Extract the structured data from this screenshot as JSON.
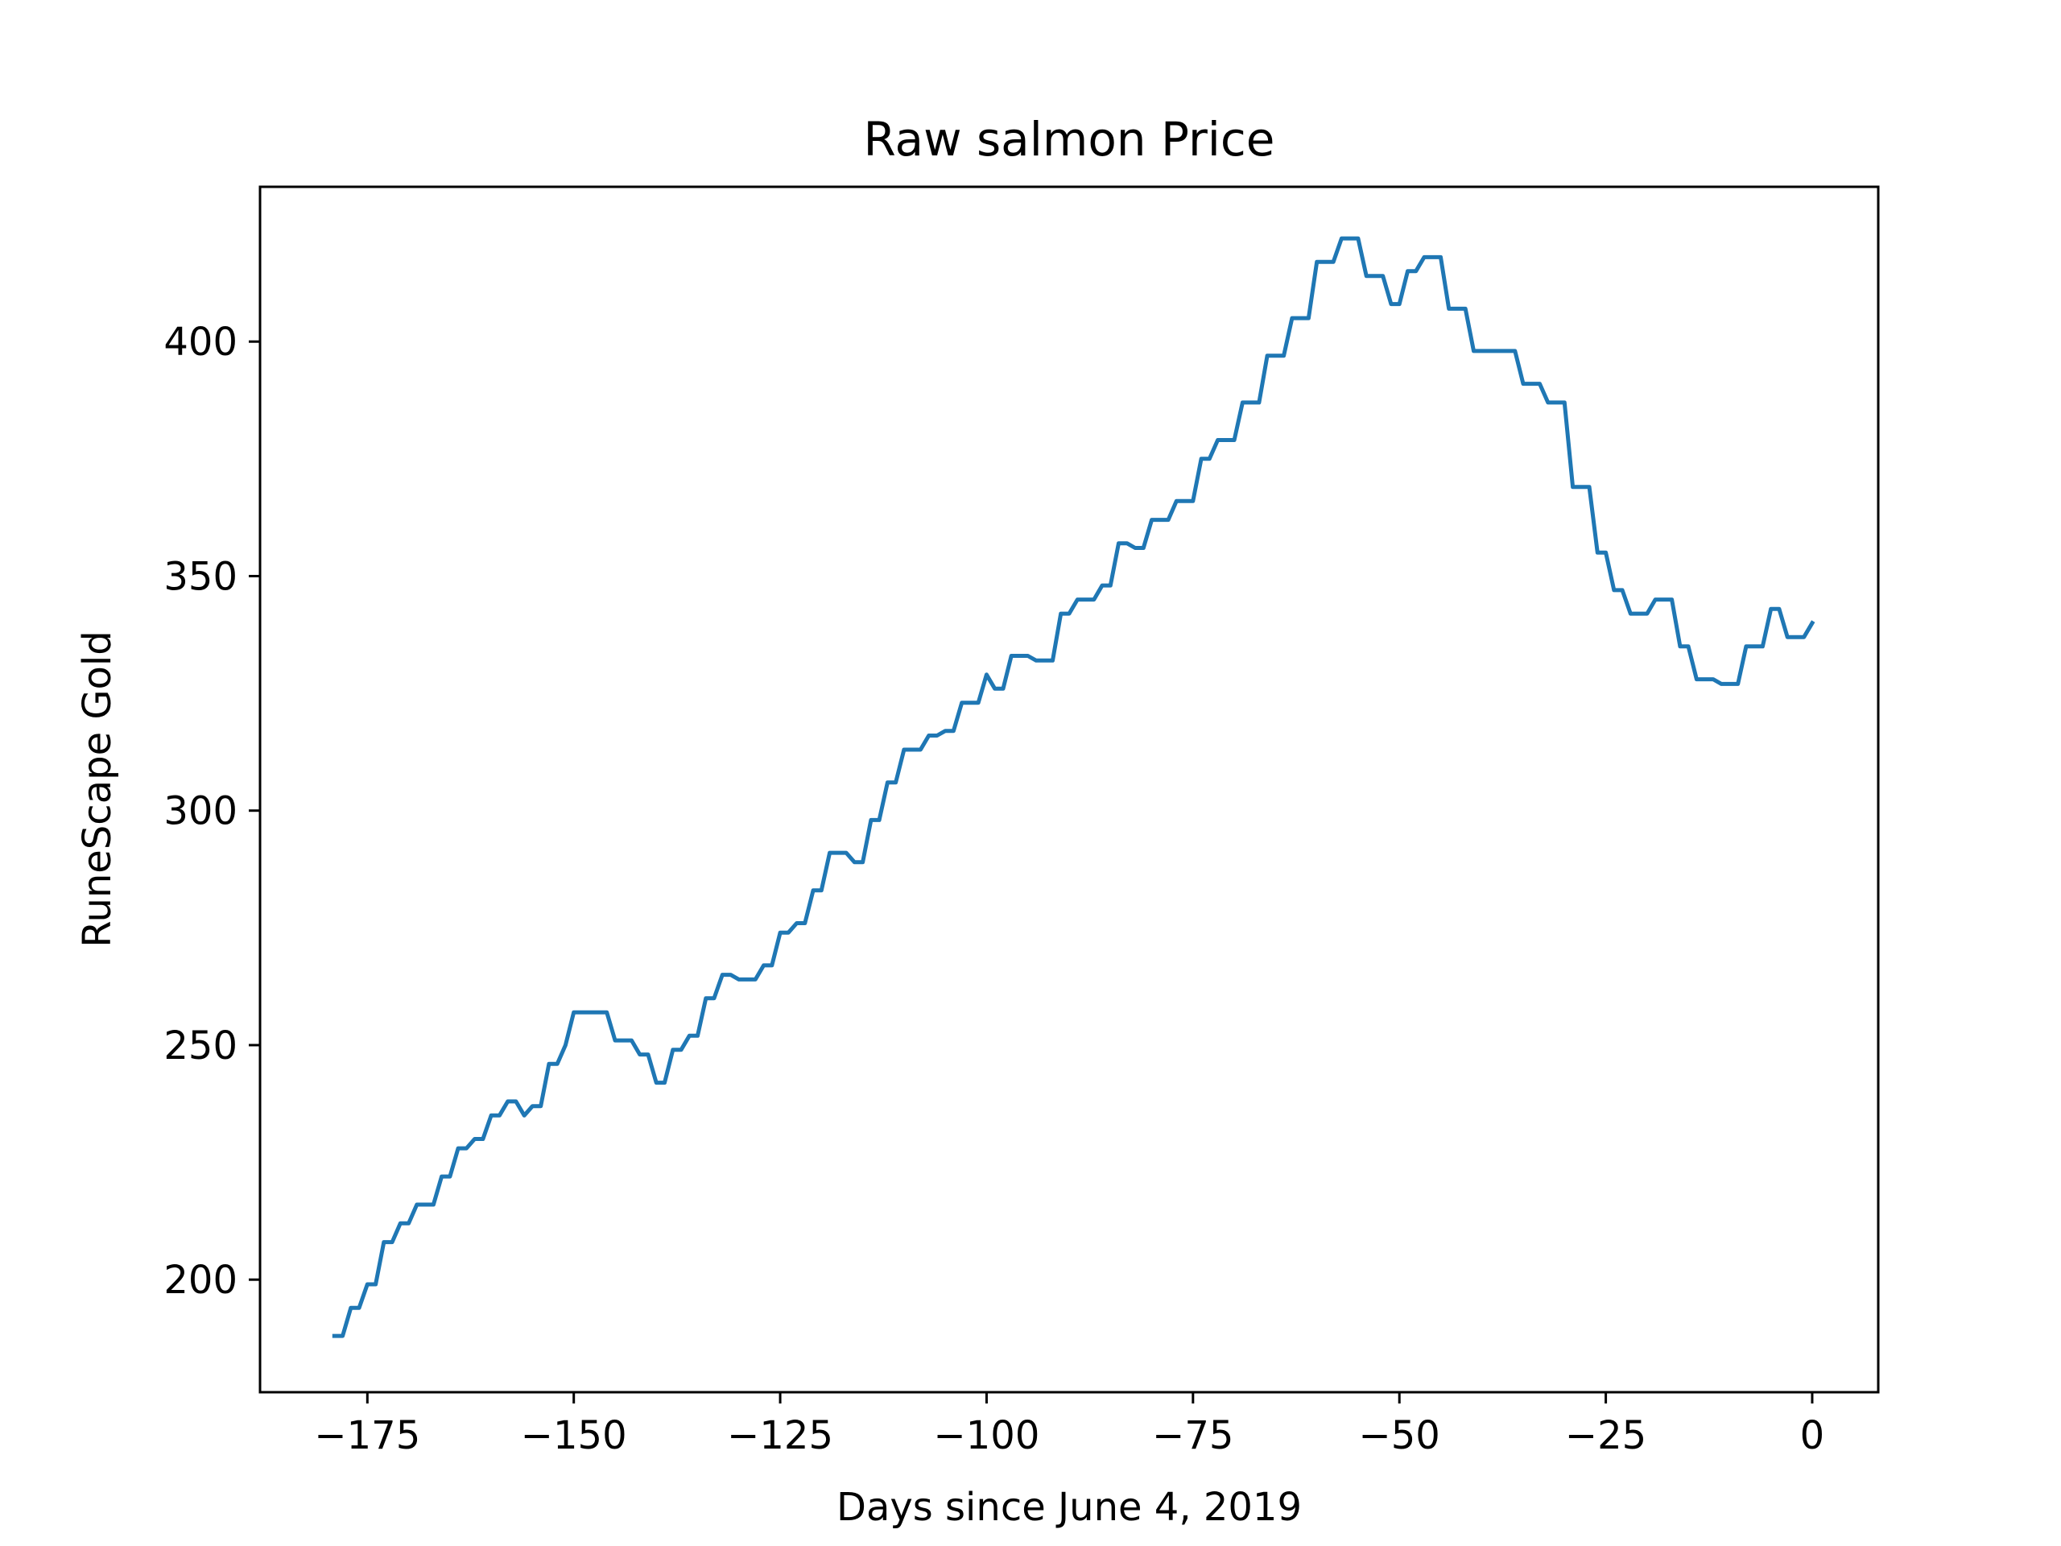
{
  "chart_data": {
    "type": "line",
    "title": "Raw salmon Price",
    "xlabel": "Days since June 4, 2019",
    "ylabel": "RuneScape Gold",
    "xlim": [
      -188,
      8
    ],
    "ylim": [
      176,
      433
    ],
    "xticks": [
      {
        "value": -175,
        "label": "−175"
      },
      {
        "value": -150,
        "label": "−150"
      },
      {
        "value": -125,
        "label": "−125"
      },
      {
        "value": -100,
        "label": "−100"
      },
      {
        "value": -75,
        "label": "−75"
      },
      {
        "value": -50,
        "label": "−50"
      },
      {
        "value": -25,
        "label": "−25"
      },
      {
        "value": 0,
        "label": "0"
      }
    ],
    "yticks": [
      {
        "value": 200,
        "label": "200"
      },
      {
        "value": 250,
        "label": "250"
      },
      {
        "value": 300,
        "label": "300"
      },
      {
        "value": 350,
        "label": "350"
      },
      {
        "value": 400,
        "label": "400"
      }
    ],
    "grid": false,
    "legend": "none",
    "series": [
      {
        "color": "#1f77b4",
        "x": [
          -179,
          -178,
          -177,
          -176,
          -175,
          -174,
          -173,
          -172,
          -171,
          -170,
          -169,
          -168,
          -167,
          -166,
          -165,
          -164,
          -163,
          -162,
          -161,
          -160,
          -159,
          -158,
          -157,
          -156,
          -155,
          -154,
          -153,
          -152,
          -151,
          -150,
          -149,
          -148,
          -147,
          -146,
          -145,
          -144,
          -143,
          -142,
          -141,
          -140,
          -139,
          -138,
          -137,
          -136,
          -135,
          -134,
          -133,
          -132,
          -131,
          -130,
          -129,
          -128,
          -127,
          -126,
          -125,
          -124,
          -123,
          -122,
          -121,
          -120,
          -119,
          -118,
          -117,
          -116,
          -115,
          -114,
          -113,
          -112,
          -111,
          -110,
          -109,
          -108,
          -107,
          -106,
          -105,
          -104,
          -103,
          -102,
          -101,
          -100,
          -99,
          -98,
          -97,
          -96,
          -95,
          -94,
          -93,
          -92,
          -91,
          -90,
          -89,
          -88,
          -87,
          -86,
          -85,
          -84,
          -83,
          -82,
          -81,
          -80,
          -79,
          -78,
          -77,
          -76,
          -75,
          -74,
          -73,
          -72,
          -71,
          -70,
          -69,
          -68,
          -67,
          -66,
          -65,
          -64,
          -63,
          -62,
          -61,
          -60,
          -59,
          -58,
          -57,
          -56,
          -55,
          -54,
          -53,
          -52,
          -51,
          -50,
          -49,
          -48,
          -47,
          -46,
          -45,
          -44,
          -43,
          -42,
          -41,
          -40,
          -39,
          -38,
          -37,
          -36,
          -35,
          -34,
          -33,
          -32,
          -31,
          -30,
          -29,
          -28,
          -27,
          -26,
          -25,
          -24,
          -23,
          -22,
          -21,
          -20,
          -19,
          -18,
          -17,
          -16,
          -15,
          -14,
          -13,
          -12,
          -11,
          -10,
          -9,
          -8,
          -7,
          -6,
          -5,
          -4,
          -3,
          -2,
          -1,
          0
        ],
        "y": [
          188,
          188,
          194,
          194,
          199,
          199,
          208,
          208,
          212,
          212,
          216,
          216,
          216,
          222,
          222,
          228,
          228,
          230,
          230,
          235,
          235,
          238,
          238,
          235,
          237,
          237,
          246,
          246,
          250,
          257,
          257,
          257,
          257,
          257,
          251,
          251,
          251,
          248,
          248,
          242,
          242,
          249,
          249,
          252,
          252,
          260,
          260,
          265,
          265,
          264,
          264,
          264,
          267,
          267,
          274,
          274,
          276,
          276,
          283,
          283,
          291,
          291,
          291,
          289,
          289,
          298,
          298,
          306,
          306,
          313,
          313,
          313,
          316,
          316,
          317,
          317,
          323,
          323,
          323,
          329,
          326,
          326,
          333,
          333,
          333,
          332,
          332,
          332,
          342,
          342,
          345,
          345,
          345,
          348,
          348,
          357,
          357,
          356,
          356,
          362,
          362,
          362,
          366,
          366,
          366,
          375,
          375,
          379,
          379,
          379,
          387,
          387,
          387,
          397,
          397,
          397,
          405,
          405,
          405,
          417,
          417,
          417,
          422,
          422,
          422,
          414,
          414,
          414,
          408,
          408,
          415,
          415,
          418,
          418,
          418,
          407,
          407,
          407,
          398,
          398,
          398,
          398,
          398,
          398,
          391,
          391,
          391,
          387,
          387,
          387,
          369,
          369,
          369,
          355,
          355,
          347,
          347,
          342,
          342,
          342,
          345,
          345,
          345,
          335,
          335,
          328,
          328,
          328,
          327,
          327,
          327,
          335,
          335,
          335,
          343,
          343,
          337,
          337,
          337,
          340
        ]
      }
    ]
  }
}
